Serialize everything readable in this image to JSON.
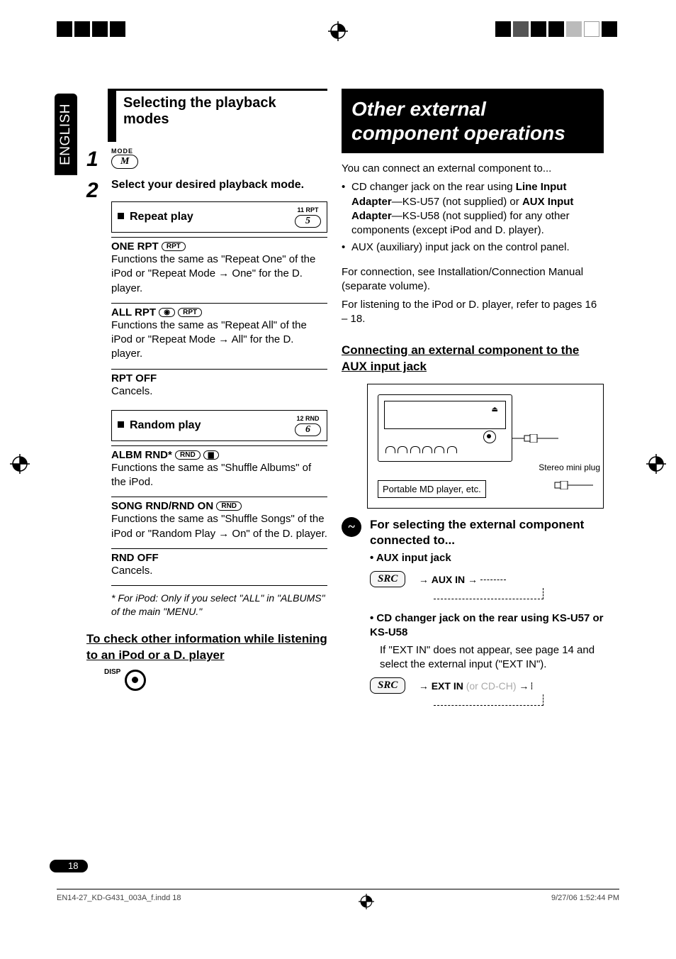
{
  "lang_tab": "ENGLISH",
  "page_number": "18",
  "footer_file": "EN14-27_KD-G431_003A_f.indd   18",
  "footer_date": "9/27/06   1:52:44 PM",
  "left": {
    "section_title": "Selecting the playback modes",
    "step1": {
      "num": "1",
      "mode_label": "MODE",
      "btn": "M"
    },
    "step2": {
      "num": "2",
      "text": "Select your desired playback mode.",
      "repeat": {
        "label": "Repeat play",
        "key_num": "11   RPT",
        "key_btn": "5"
      },
      "random": {
        "label": "Random play",
        "key_num": "12   RND",
        "key_btn": "6"
      }
    },
    "modes": {
      "one_rpt": {
        "title": "ONE RPT",
        "tag": "RPT",
        "desc_a": "Functions the same as \"Repeat One\" of the iPod or \"Repeat Mode ",
        "desc_b": " One\" for the D. player."
      },
      "all_rpt": {
        "title": "ALL RPT",
        "tag1": "●",
        "tag2": "RPT",
        "desc_a": "Functions the same as \"Repeat All\" of the iPod or \"Repeat Mode ",
        "desc_b": " All\" for the D. player."
      },
      "rpt_off": {
        "title": "RPT OFF",
        "desc": "Cancels."
      },
      "albm_rnd": {
        "title": "ALBM RND*",
        "tag1": "RND",
        "tag2": "▆",
        "desc": "Functions the same as \"Shuffle Albums\" of the iPod."
      },
      "song_rnd": {
        "title": "SONG RND/RND ON",
        "tag": "RND",
        "desc_a": "Functions the same as \"Shuffle Songs\" of the iPod or \"Random Play ",
        "desc_b": " On\" of the D. player."
      },
      "rnd_off": {
        "title": "RND OFF",
        "desc": "Cancels."
      }
    },
    "footnote": "*  For iPod: Only if you select \"ALL\" in \"ALBUMS\" of the main \"MENU.\"",
    "check_heading": "To check other information while listening to an iPod or a D. player",
    "disp_label": "DISP"
  },
  "right": {
    "section_title": "Other external component operations",
    "intro": "You can connect an external component to...",
    "bullets": [
      "CD changer jack on the rear using <b>Line Input Adapter</b>—KS-U57 (not supplied) or <b>AUX Input Adapter</b>—KS-U58 (not supplied) for any other components (except iPod and D. player).",
      "AUX (auxiliary) input jack on the control panel."
    ],
    "conn_text": "For connection, see Installation/Connection Manual (separate volume).",
    "listen_text": "For listening to the iPod or D. player, refer to pages 16 – 18.",
    "connect_heading": "Connecting an external component to the AUX input jack",
    "diagram": {
      "stereo_plug": "Stereo mini plug",
      "md_player": "Portable MD player, etc."
    },
    "step": {
      "num": "~",
      "title": "For selecting the external component connected to...",
      "aux_label": "•  AUX input jack",
      "src_btn": "SRC",
      "aux_flow": "AUX IN",
      "cd_label_a": "•  CD changer jack on the rear using KS-U57 or KS-U58",
      "cd_desc": "If \"EXT IN\" does not appear, see page 14 and select the external input (\"EXT IN\").",
      "ext_flow_a": "EXT IN",
      "ext_flow_b": " (or ",
      "ext_flow_c": "CD-CH",
      "ext_flow_d": ")"
    }
  }
}
